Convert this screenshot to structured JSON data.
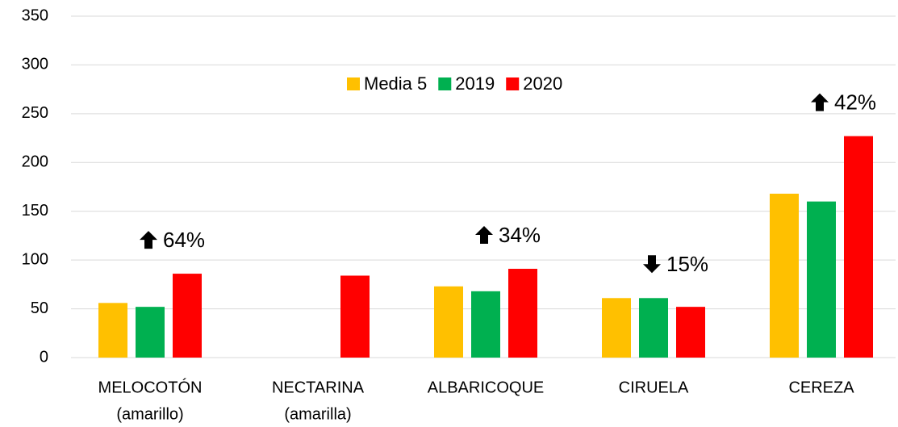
{
  "chart_data": {
    "type": "bar",
    "categories": [
      [
        "MELOCOTÓN",
        "(amarillo)"
      ],
      [
        "NECTARINA",
        "(amarilla)"
      ],
      [
        "ALBARICOQUE"
      ],
      [
        "CIRUELA"
      ],
      [
        "CEREZA"
      ]
    ],
    "series": [
      {
        "name": "Media 5",
        "color": "#FFC000",
        "values": [
          56,
          null,
          73,
          61,
          168
        ]
      },
      {
        "name": "2019",
        "color": "#00B050",
        "values": [
          52,
          null,
          68,
          61,
          160
        ]
      },
      {
        "name": "2020",
        "color": "#FF0000",
        "values": [
          86,
          84,
          91,
          52,
          227
        ]
      }
    ],
    "annotations": [
      "64%",
      null,
      "34%",
      "15%",
      "42%"
    ],
    "annotation_arrows": [
      "up",
      null,
      "up",
      "down",
      "up"
    ],
    "ylim": [
      0,
      350
    ],
    "yticks": [
      0,
      50,
      100,
      150,
      200,
      250,
      300,
      350
    ],
    "grid": true,
    "legend": "upper center"
  }
}
